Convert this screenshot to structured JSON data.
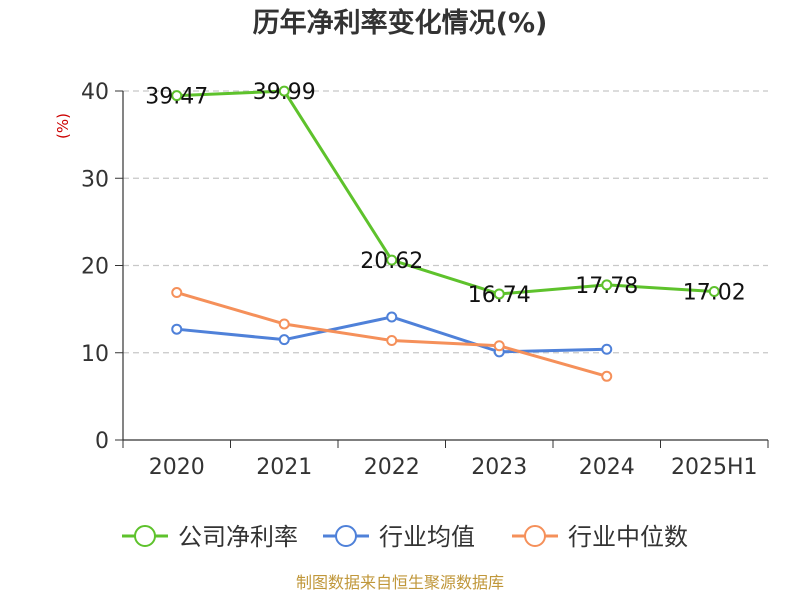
{
  "chart_data": {
    "type": "line",
    "title": "历年净利率变化情况(%)",
    "ylabel": "(%)",
    "categories": [
      "2020",
      "2021",
      "2022",
      "2023",
      "2024",
      "2025H1"
    ],
    "ylim": [
      0,
      40
    ],
    "yticks": [
      "0",
      "10",
      "20",
      "30",
      "40"
    ],
    "grid": "horizontal dashed",
    "legend_position": "bottom",
    "series": [
      {
        "name": "公司净利率",
        "color": "#5ec22c",
        "values": [
          39.47,
          39.99,
          20.62,
          16.74,
          17.78,
          17.02
        ],
        "labels": [
          "39.47",
          "39.99",
          "20.62",
          "16.74",
          "17.78",
          "17.02"
        ]
      },
      {
        "name": "行业均值",
        "color": "#4f81d9",
        "values": [
          12.7,
          11.5,
          14.1,
          10.1,
          10.4,
          null
        ]
      },
      {
        "name": "行业中位数",
        "color": "#f5905a",
        "values": [
          16.9,
          13.3,
          11.4,
          10.8,
          7.3,
          null
        ]
      }
    ]
  },
  "footer": {
    "source": "制图数据来自恒生聚源数据库"
  }
}
